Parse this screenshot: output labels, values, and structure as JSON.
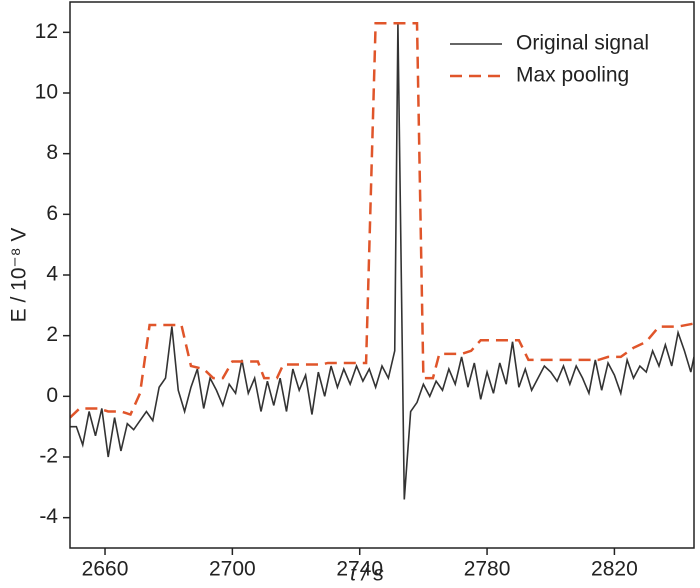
{
  "chart_data": {
    "type": "line",
    "xlabel": "t / s",
    "ylabel": "E / 10⁻⁸ V",
    "xlim": [
      2649,
      2845
    ],
    "xticks": [
      2660,
      2700,
      2740,
      2780,
      2820
    ],
    "ylim": [
      -5,
      13
    ],
    "yticks": [
      -4,
      -2,
      0,
      2,
      4,
      6,
      8,
      10,
      12
    ],
    "legend": "upper right",
    "series": [
      {
        "name": "Original signal",
        "color": "#333333",
        "dash": "solid",
        "x": [
          2649,
          2651,
          2653,
          2655,
          2657,
          2659,
          2661,
          2663,
          2665,
          2667,
          2669,
          2671,
          2673,
          2675,
          2677,
          2679,
          2681,
          2683,
          2685,
          2687,
          2689,
          2691,
          2693,
          2695,
          2697,
          2699,
          2701,
          2703,
          2705,
          2707,
          2709,
          2711,
          2713,
          2715,
          2717,
          2719,
          2721,
          2723,
          2725,
          2727,
          2729,
          2731,
          2733,
          2735,
          2737,
          2739,
          2741,
          2743,
          2745,
          2747,
          2749,
          2751,
          2752,
          2754,
          2756,
          2758,
          2760,
          2762,
          2764,
          2766,
          2768,
          2770,
          2772,
          2774,
          2776,
          2778,
          2780,
          2782,
          2784,
          2786,
          2788,
          2790,
          2792,
          2794,
          2796,
          2798,
          2800,
          2802,
          2804,
          2806,
          2808,
          2810,
          2812,
          2814,
          2816,
          2818,
          2820,
          2822,
          2824,
          2826,
          2828,
          2830,
          2832,
          2834,
          2836,
          2838,
          2840,
          2842,
          2844,
          2845
        ],
        "values": [
          -1.0,
          -1.0,
          -1.6,
          -0.5,
          -1.3,
          -0.4,
          -2.0,
          -0.7,
          -1.8,
          -0.9,
          -1.1,
          -0.8,
          -0.5,
          -0.8,
          0.3,
          0.6,
          2.3,
          0.2,
          -0.5,
          0.3,
          0.9,
          -0.4,
          0.6,
          0.2,
          -0.3,
          0.4,
          0.1,
          1.2,
          0.1,
          0.6,
          -0.5,
          0.5,
          -0.3,
          0.6,
          -0.5,
          0.9,
          0.2,
          0.7,
          -0.6,
          0.8,
          0.0,
          1.0,
          0.3,
          0.9,
          0.4,
          1.0,
          0.5,
          0.9,
          0.3,
          1.0,
          0.6,
          1.5,
          12.3,
          -3.4,
          -0.5,
          -0.2,
          0.4,
          0.0,
          0.5,
          0.2,
          0.9,
          0.4,
          1.3,
          0.3,
          1.1,
          -0.1,
          0.8,
          0.1,
          1.1,
          0.4,
          1.8,
          0.3,
          0.9,
          0.2,
          0.6,
          1.0,
          0.8,
          0.5,
          1.0,
          0.4,
          1.0,
          0.6,
          0.1,
          1.2,
          0.2,
          1.1,
          0.7,
          0.1,
          1.2,
          0.6,
          1.0,
          0.8,
          1.5,
          1.0,
          1.7,
          1.0,
          2.1,
          1.5,
          0.8,
          1.3
        ]
      },
      {
        "name": "Max pooling",
        "color": "#e0552a",
        "dash": "dashed",
        "x": [
          2649,
          2652,
          2658,
          2661,
          2665,
          2668,
          2671,
          2674,
          2684,
          2687,
          2691,
          2694,
          2697,
          2700,
          2708,
          2710,
          2714,
          2716,
          2728,
          2730,
          2742,
          2745,
          2758,
          2760,
          2763,
          2765,
          2772,
          2775,
          2778,
          2790,
          2793,
          2815,
          2818,
          2822,
          2826,
          2830,
          2834,
          2840,
          2845
        ],
        "values": [
          -0.7,
          -0.4,
          -0.4,
          -0.5,
          -0.5,
          -0.6,
          0.1,
          2.35,
          2.35,
          1.0,
          0.9,
          0.6,
          0.6,
          1.15,
          1.15,
          0.6,
          0.6,
          1.05,
          1.05,
          1.1,
          1.1,
          12.3,
          12.3,
          0.6,
          0.6,
          1.4,
          1.4,
          1.5,
          1.85,
          1.85,
          1.2,
          1.2,
          1.3,
          1.3,
          1.6,
          1.8,
          2.3,
          2.3,
          2.4
        ]
      }
    ]
  }
}
